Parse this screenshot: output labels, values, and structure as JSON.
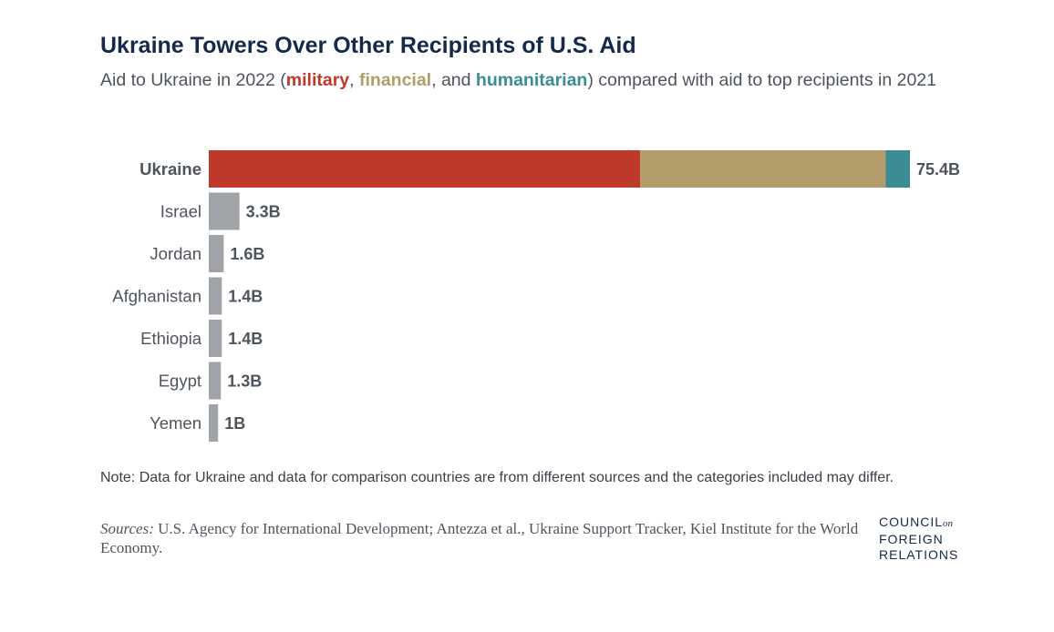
{
  "header": {
    "title": "Ukraine Towers Over Other Recipients of U.S. Aid",
    "subtitle_prefix": "Aid to Ukraine in 2022 (",
    "subtitle_military": "military",
    "subtitle_sep1": ", ",
    "subtitle_financial": "financial",
    "subtitle_sep2": ", and ",
    "subtitle_humanitarian": "humanitarian",
    "subtitle_suffix": ") compared with aid to top recipients in 2021"
  },
  "chart_data": {
    "type": "bar",
    "orientation": "horizontal",
    "stacked": true,
    "categories": [
      "Ukraine",
      "Israel",
      "Jordan",
      "Afghanistan",
      "Ethiopia",
      "Egypt",
      "Yemen"
    ],
    "totals": [
      75.4,
      3.3,
      1.6,
      1.4,
      1.4,
      1.3,
      1.0
    ],
    "value_labels": [
      "75.4B",
      "3.3B",
      "1.6B",
      "1.4B",
      "1.4B",
      "1.3B",
      "1B"
    ],
    "ukraine_breakdown": [
      {
        "name": "military",
        "value": 46.4,
        "color": "#bd3a2b"
      },
      {
        "name": "financial",
        "value": 26.4,
        "color": "#b19c6a"
      },
      {
        "name": "humanitarian",
        "value": 2.6,
        "color": "#3b8c94"
      }
    ],
    "other_color": "#a0a4a8",
    "xlim": [
      0,
      75.4
    ],
    "grid": false,
    "unit": "billion USD"
  },
  "footer": {
    "note": "Note: Data for Ukraine and data for comparison countries are from different sources and the categories included may differ.",
    "sources_label": "Sources:",
    "sources_text": " U.S. Agency for International Development; Antezza et al., Ukraine Support Tracker, Kiel Institute for the World Economy.",
    "logo_line1": "COUNCIL",
    "logo_on": "on",
    "logo_line2": "FOREIGN",
    "logo_line3": "RELATIONS"
  }
}
